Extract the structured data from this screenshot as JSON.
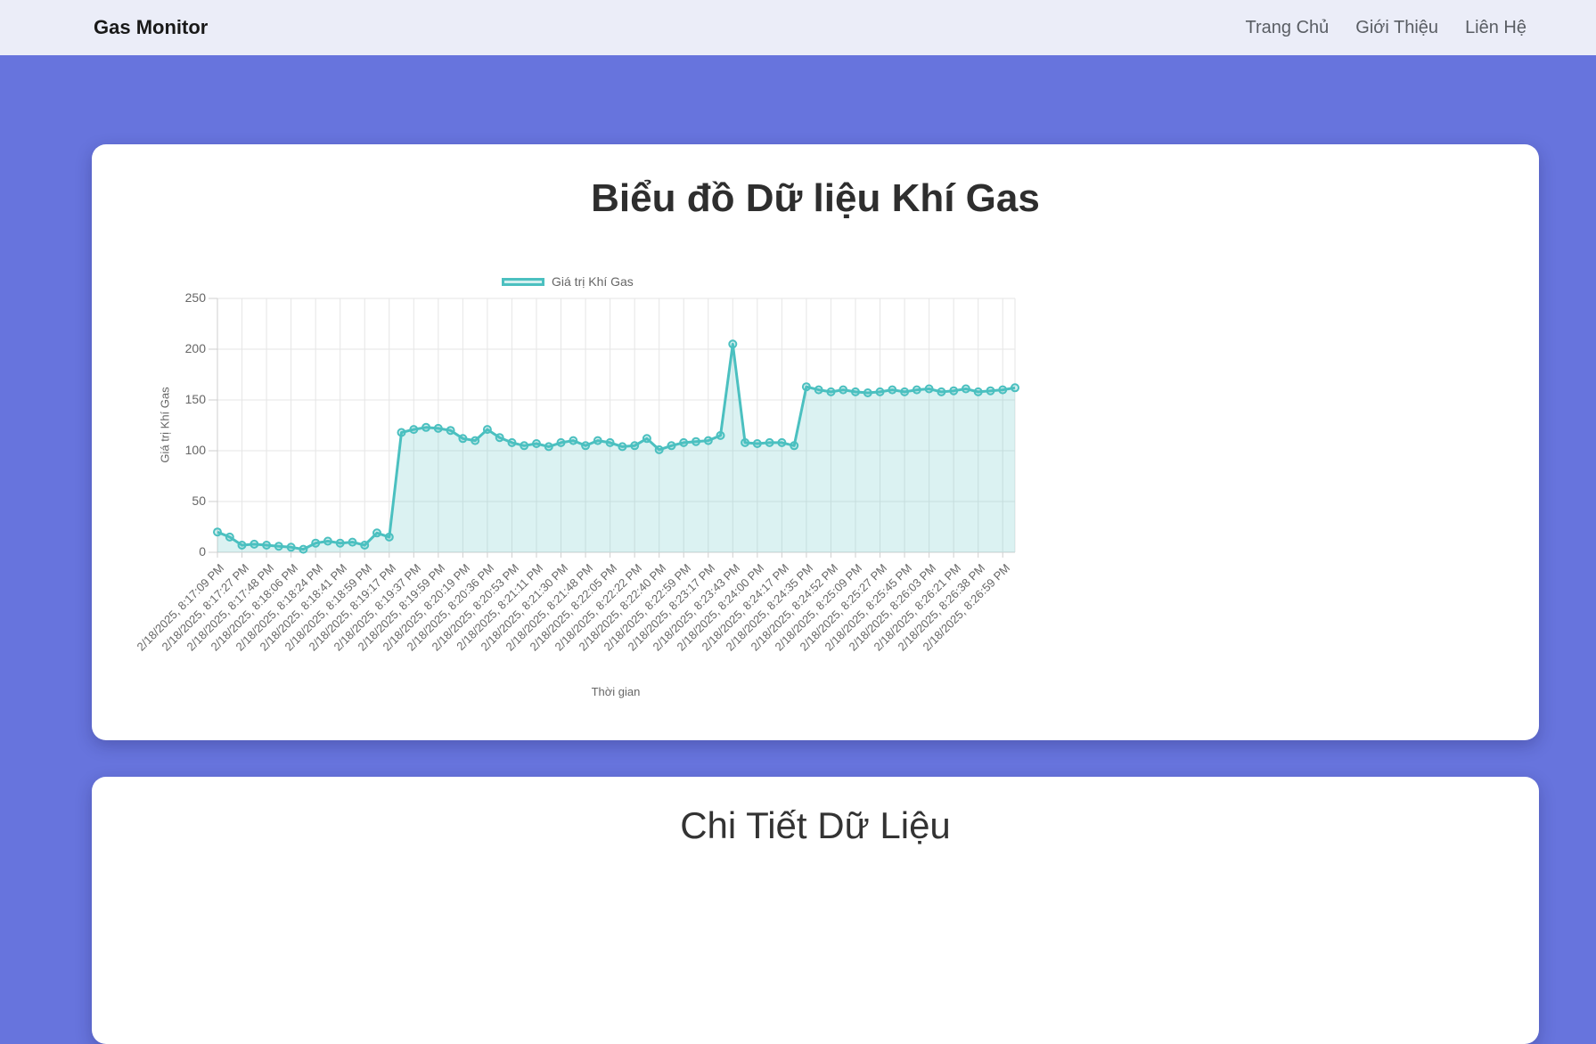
{
  "navbar": {
    "brand": "Gas Monitor",
    "links": [
      {
        "label": "Trang Chủ"
      },
      {
        "label": "Giới Thiệu"
      },
      {
        "label": "Liên Hệ"
      }
    ]
  },
  "chart_section": {
    "title": "Biểu đồ Dữ liệu Khí Gas"
  },
  "details_section": {
    "title": "Chi Tiết Dữ Liệu"
  },
  "chart_data": {
    "type": "area",
    "legend_label": "Giá trị Khí Gas",
    "legend_position": "top",
    "xlabel": "Thời gian",
    "ylabel": "Giá trị Khí Gas",
    "ylim": [
      0,
      250
    ],
    "y_ticks": [
      0,
      50,
      100,
      150,
      200,
      250
    ],
    "grid": true,
    "x_tick_every": 2,
    "x_labels": [
      "2/18/2025, 8:17:09 PM",
      "2/18/2025, 8:17:27 PM",
      "2/18/2025, 8:17:48 PM",
      "2/18/2025, 8:18:06 PM",
      "2/18/2025, 8:18:24 PM",
      "2/18/2025, 8:18:41 PM",
      "2/18/2025, 8:18:59 PM",
      "2/18/2025, 8:19:17 PM",
      "2/18/2025, 8:19:37 PM",
      "2/18/2025, 8:19:59 PM",
      "2/18/2025, 8:20:19 PM",
      "2/18/2025, 8:20:36 PM",
      "2/18/2025, 8:20:53 PM",
      "2/18/2025, 8:21:11 PM",
      "2/18/2025, 8:21:30 PM",
      "2/18/2025, 8:21:48 PM",
      "2/18/2025, 8:22:05 PM",
      "2/18/2025, 8:22:22 PM",
      "2/18/2025, 8:22:40 PM",
      "2/18/2025, 8:22:59 PM",
      "2/18/2025, 8:23:17 PM",
      "2/18/2025, 8:23:43 PM",
      "2/18/2025, 8:24:00 PM",
      "2/18/2025, 8:24:17 PM",
      "2/18/2025, 8:24:35 PM",
      "2/18/2025, 8:24:52 PM",
      "2/18/2025, 8:25:09 PM",
      "2/18/2025, 8:25:27 PM",
      "2/18/2025, 8:25:45 PM",
      "2/18/2025, 8:26:03 PM",
      "2/18/2025, 8:26:21 PM",
      "2/18/2025, 8:26:38 PM",
      "2/18/2025, 8:26:59 PM"
    ],
    "values": [
      20,
      15,
      7,
      8,
      7,
      6,
      5,
      3,
      9,
      11,
      9,
      10,
      7,
      19,
      15,
      118,
      121,
      123,
      122,
      120,
      112,
      110,
      121,
      113,
      108,
      105,
      107,
      104,
      108,
      110,
      105,
      110,
      108,
      104,
      105,
      112,
      101,
      105,
      108,
      109,
      110,
      115,
      205,
      108,
      107,
      108,
      108,
      105,
      163,
      160,
      158,
      160,
      158,
      157,
      158,
      160,
      158,
      160,
      161,
      158,
      159,
      161,
      158,
      159,
      160,
      162
    ],
    "line_color": "#4bc0c0",
    "fill_color": "rgba(75,192,192,0.2)",
    "grid_color": "#e6e6e6",
    "axis_color": "#cfcfcf",
    "tick_text_color": "#666666"
  }
}
